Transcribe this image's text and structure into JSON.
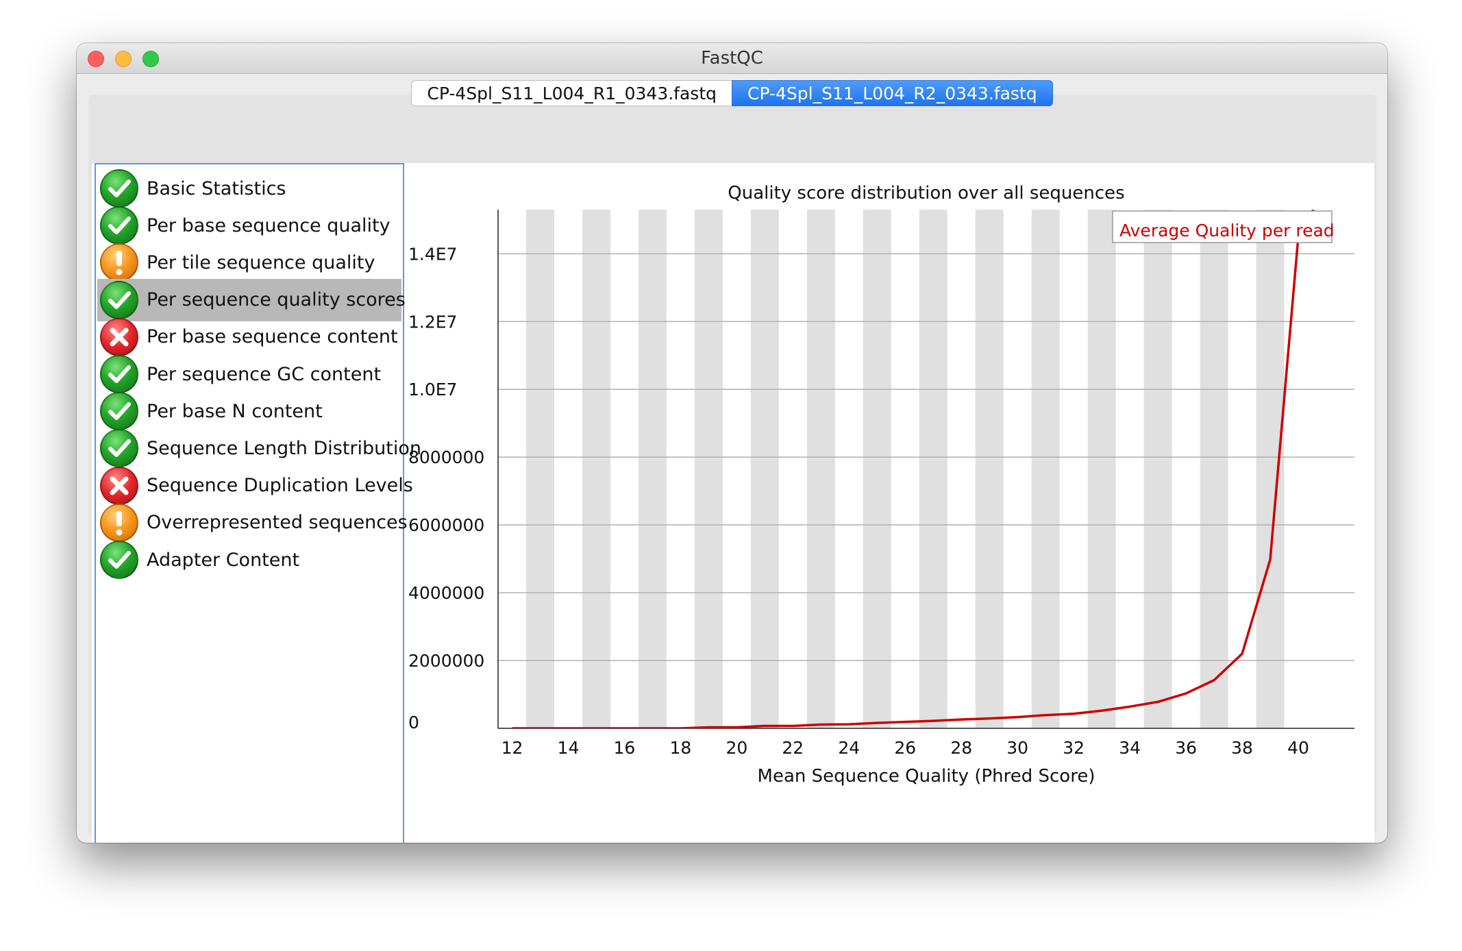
{
  "window": {
    "title": "FastQC"
  },
  "tabs": [
    {
      "label": "CP-4Spl_S11_L004_R1_0343.fastq",
      "active": false
    },
    {
      "label": "CP-4Spl_S11_L004_R2_0343.fastq",
      "active": true
    }
  ],
  "modules": [
    {
      "label": "Basic Statistics",
      "status": "pass",
      "icon": "check-icon"
    },
    {
      "label": "Per base sequence quality",
      "status": "pass",
      "icon": "check-icon"
    },
    {
      "label": "Per tile sequence quality",
      "status": "warn",
      "icon": "exclamation-icon"
    },
    {
      "label": "Per sequence quality scores",
      "status": "pass",
      "icon": "check-icon",
      "selected": true
    },
    {
      "label": "Per base sequence content",
      "status": "fail",
      "icon": "cross-icon"
    },
    {
      "label": "Per sequence GC content",
      "status": "pass",
      "icon": "check-icon"
    },
    {
      "label": "Per base N content",
      "status": "pass",
      "icon": "check-icon"
    },
    {
      "label": "Sequence Length Distribution",
      "status": "pass",
      "icon": "check-icon"
    },
    {
      "label": "Sequence Duplication Levels",
      "status": "fail",
      "icon": "cross-icon"
    },
    {
      "label": "Overrepresented sequences",
      "status": "warn",
      "icon": "exclamation-icon"
    },
    {
      "label": "Adapter Content",
      "status": "pass",
      "icon": "check-icon"
    }
  ],
  "colors": {
    "selected_tab": "#1f73ee",
    "series_line": "#cc0000",
    "stripe": "#e0e0e0",
    "pass": "#25a52a",
    "warn": "#f7931b",
    "fail": "#e3262a"
  },
  "chart_data": {
    "type": "line",
    "title": "Quality score distribution over all sequences",
    "xlabel": "Mean Sequence Quality (Phred Score)",
    "ylabel": "",
    "x": [
      12,
      13,
      14,
      15,
      16,
      17,
      18,
      19,
      20,
      21,
      22,
      23,
      24,
      25,
      26,
      27,
      28,
      29,
      30,
      31,
      32,
      33,
      34,
      35,
      36,
      37,
      38,
      39,
      40,
      41
    ],
    "series": [
      {
        "name": "Average Quality per read",
        "values": [
          0,
          0,
          0,
          0,
          0,
          0,
          0,
          30000,
          30000,
          70000,
          70000,
          110000,
          120000,
          160000,
          190000,
          220000,
          260000,
          290000,
          330000,
          390000,
          430000,
          520000,
          640000,
          780000,
          1030000,
          1420000,
          2200000,
          4980000,
          14500000,
          16000000
        ]
      }
    ],
    "xticks": [
      12,
      14,
      16,
      18,
      20,
      22,
      24,
      26,
      28,
      30,
      32,
      34,
      36,
      38,
      40
    ],
    "yticks": [
      {
        "value": 0,
        "label": "0"
      },
      {
        "value": 2000000,
        "label": "2000000"
      },
      {
        "value": 4000000,
        "label": "4000000"
      },
      {
        "value": 6000000,
        "label": "6000000"
      },
      {
        "value": 8000000,
        "label": "8000000"
      },
      {
        "value": 10000000,
        "label": "1.0E7"
      },
      {
        "value": 12000000,
        "label": "1.2E7"
      },
      {
        "value": 14000000,
        "label": "1.4E7"
      }
    ],
    "xlim": [
      11.5,
      42
    ],
    "ylim": [
      0,
      15300000
    ],
    "grid": true,
    "alternating_column_stripes": true,
    "legend_position": "top-right"
  }
}
